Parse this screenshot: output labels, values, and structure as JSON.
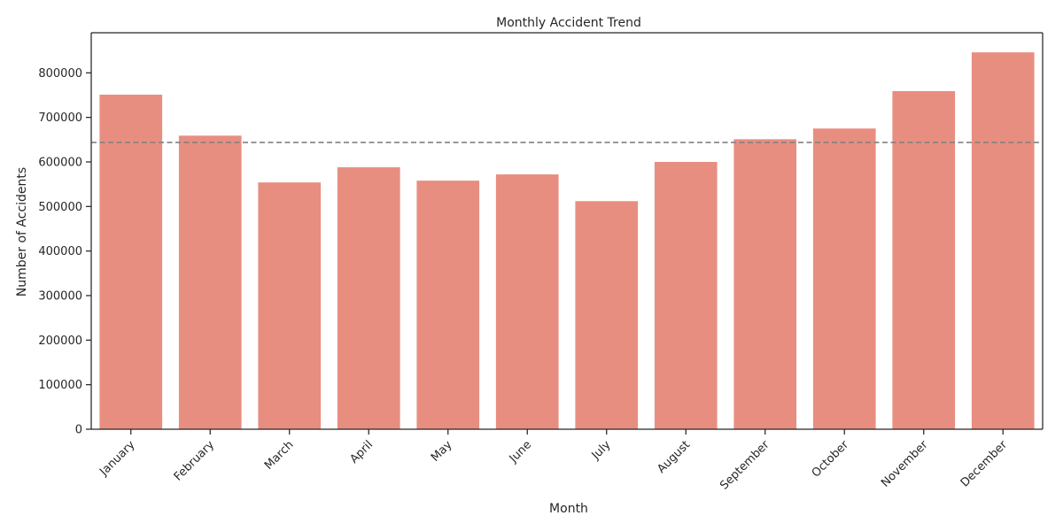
{
  "colors": {
    "bar": "#e88e80",
    "reference_line": "#808080",
    "axes": "#262626"
  },
  "chart_data": {
    "type": "bar",
    "title": "Monthly Accident Trend",
    "xlabel": "Month",
    "ylabel": "Number of Accidents",
    "categories": [
      "January",
      "February",
      "March",
      "April",
      "May",
      "June",
      "July",
      "August",
      "September",
      "October",
      "November",
      "December"
    ],
    "values": [
      751000,
      659000,
      554000,
      588000,
      558000,
      572000,
      512000,
      600000,
      651000,
      675000,
      759000,
      846000
    ],
    "ylim": [
      0,
      890000
    ],
    "yticks": [
      "0",
      "100000",
      "200000",
      "300000",
      "400000",
      "500000",
      "600000",
      "700000",
      "800000"
    ],
    "ytick_values": [
      0,
      100000,
      200000,
      300000,
      400000,
      500000,
      600000,
      700000,
      800000
    ],
    "reference_line": {
      "value": 643800,
      "style": "dashed"
    },
    "grid": false,
    "legend": "none"
  }
}
